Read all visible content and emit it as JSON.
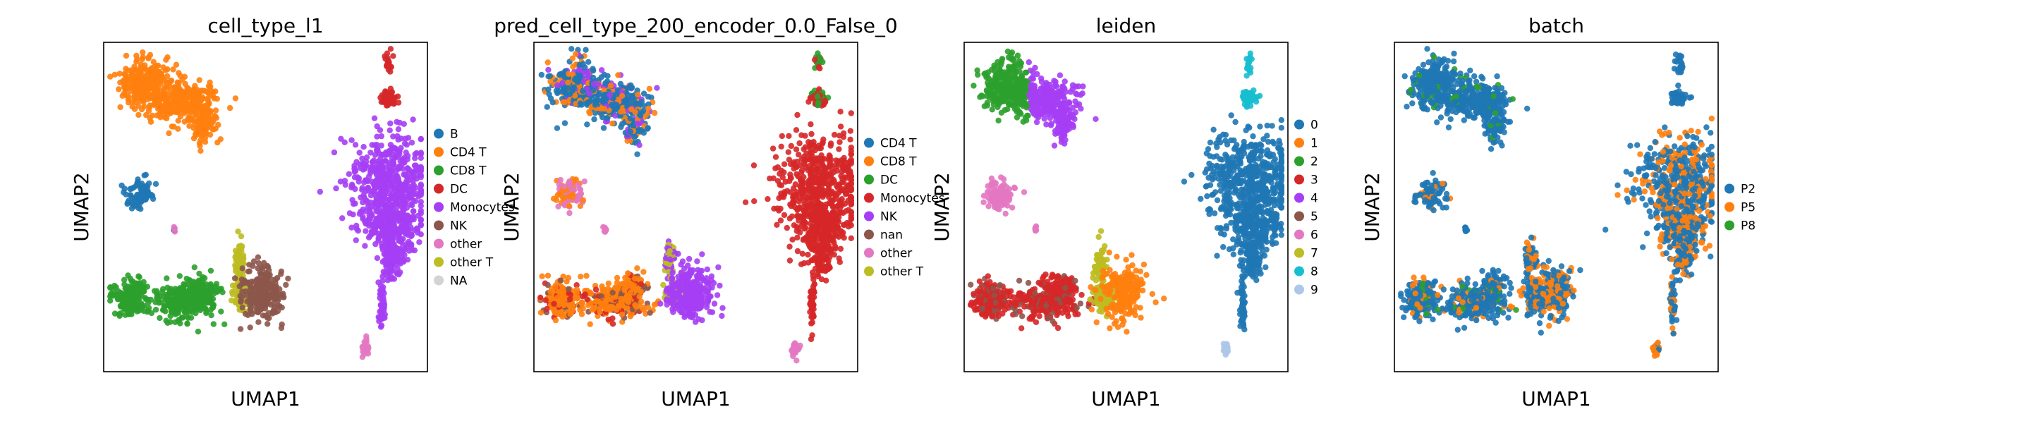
{
  "colors": {
    "tab_blue": "#1f77b4",
    "tab_orange": "#ff7f0e",
    "tab_green": "#2ca02c",
    "tab_red": "#d62728",
    "tab_purple": "#9467bd",
    "tab_brown": "#8c564b",
    "tab_pink": "#e377c2",
    "tab_olive": "#bcbd22",
    "tab_cyan": "#17becf",
    "light_blue": "#aec7e8",
    "na_gray": "#d3d3d3",
    "bright_purple": "#a53ef4",
    "axes_edge": "#000000"
  },
  "chart_data": [
    {
      "type": "scatter",
      "title": "cell_type_l1",
      "xlabel": "UMAP1",
      "ylabel": "UMAP2",
      "grid": false,
      "legend_placement": "right",
      "legend": [
        {
          "name": "B",
          "color": "#1f77b4"
        },
        {
          "name": "CD4 T",
          "color": "#ff7f0e"
        },
        {
          "name": "CD8 T",
          "color": "#2ca02c"
        },
        {
          "name": "DC",
          "color": "#d62728"
        },
        {
          "name": "Monocytes",
          "color": "#a53ef4"
        },
        {
          "name": "NK",
          "color": "#8c564b"
        },
        {
          "name": "other",
          "color": "#e377c2"
        },
        {
          "name": "other T",
          "color": "#bcbd22"
        },
        {
          "name": "NA",
          "color": "#d3d3d3"
        }
      ]
    },
    {
      "type": "scatter",
      "title": "pred_cell_type_200_encoder_0.0_False_0",
      "xlabel": "UMAP1",
      "ylabel": "UMAP2",
      "grid": false,
      "legend_placement": "right",
      "legend": [
        {
          "name": "CD4 T",
          "color": "#1f77b4"
        },
        {
          "name": "CD8 T",
          "color": "#ff7f0e"
        },
        {
          "name": "DC",
          "color": "#2ca02c"
        },
        {
          "name": "Monocytes",
          "color": "#d62728"
        },
        {
          "name": "NK",
          "color": "#a53ef4"
        },
        {
          "name": "nan",
          "color": "#8c564b"
        },
        {
          "name": "other",
          "color": "#e377c2"
        },
        {
          "name": "other T",
          "color": "#bcbd22"
        }
      ]
    },
    {
      "type": "scatter",
      "title": "leiden",
      "xlabel": "UMAP1",
      "ylabel": "UMAP2",
      "grid": false,
      "legend_placement": "right",
      "legend": [
        {
          "name": "0",
          "color": "#1f77b4"
        },
        {
          "name": "1",
          "color": "#ff7f0e"
        },
        {
          "name": "2",
          "color": "#2ca02c"
        },
        {
          "name": "3",
          "color": "#d62728"
        },
        {
          "name": "4",
          "color": "#a53ef4"
        },
        {
          "name": "5",
          "color": "#8c564b"
        },
        {
          "name": "6",
          "color": "#e377c2"
        },
        {
          "name": "7",
          "color": "#bcbd22"
        },
        {
          "name": "8",
          "color": "#17becf"
        },
        {
          "name": "9",
          "color": "#aec7e8"
        }
      ]
    },
    {
      "type": "scatter",
      "title": "batch",
      "xlabel": "UMAP1",
      "ylabel": "UMAP2",
      "grid": false,
      "legend_placement": "right",
      "legend": [
        {
          "name": "P2",
          "color": "#1f77b4"
        },
        {
          "name": "P5",
          "color": "#ff7f0e"
        },
        {
          "name": "P8",
          "color": "#2ca02c"
        }
      ]
    }
  ]
}
